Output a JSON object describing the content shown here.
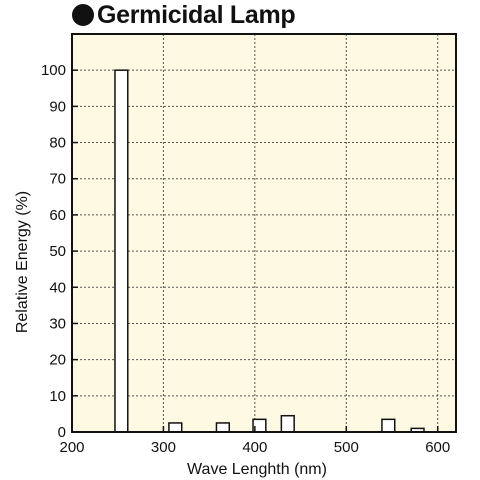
{
  "chart_data": {
    "type": "bar",
    "title": "Germicidal Lamp",
    "xlabel": "Wave Lenghth (nm)",
    "ylabel": "Relative Energy (%)",
    "xlim": [
      200,
      620
    ],
    "ylim": [
      0,
      110
    ],
    "xticks": [
      200,
      300,
      400,
      500,
      600
    ],
    "yticks": [
      0,
      10,
      20,
      30,
      40,
      50,
      60,
      70,
      80,
      90,
      100
    ],
    "grid": true,
    "bar_width_nm": 14,
    "bars": [
      {
        "x": 254,
        "y": 100
      },
      {
        "x": 313,
        "y": 2.5
      },
      {
        "x": 365,
        "y": 2.5
      },
      {
        "x": 405,
        "y": 3.5
      },
      {
        "x": 436,
        "y": 4.5
      },
      {
        "x": 546,
        "y": 3.5
      },
      {
        "x": 578,
        "y": 1
      }
    ]
  },
  "colors": {
    "plot_background": "#fdf9e2",
    "bar_fill": "#ffffff",
    "line": "#111111",
    "grid": "#555555"
  }
}
